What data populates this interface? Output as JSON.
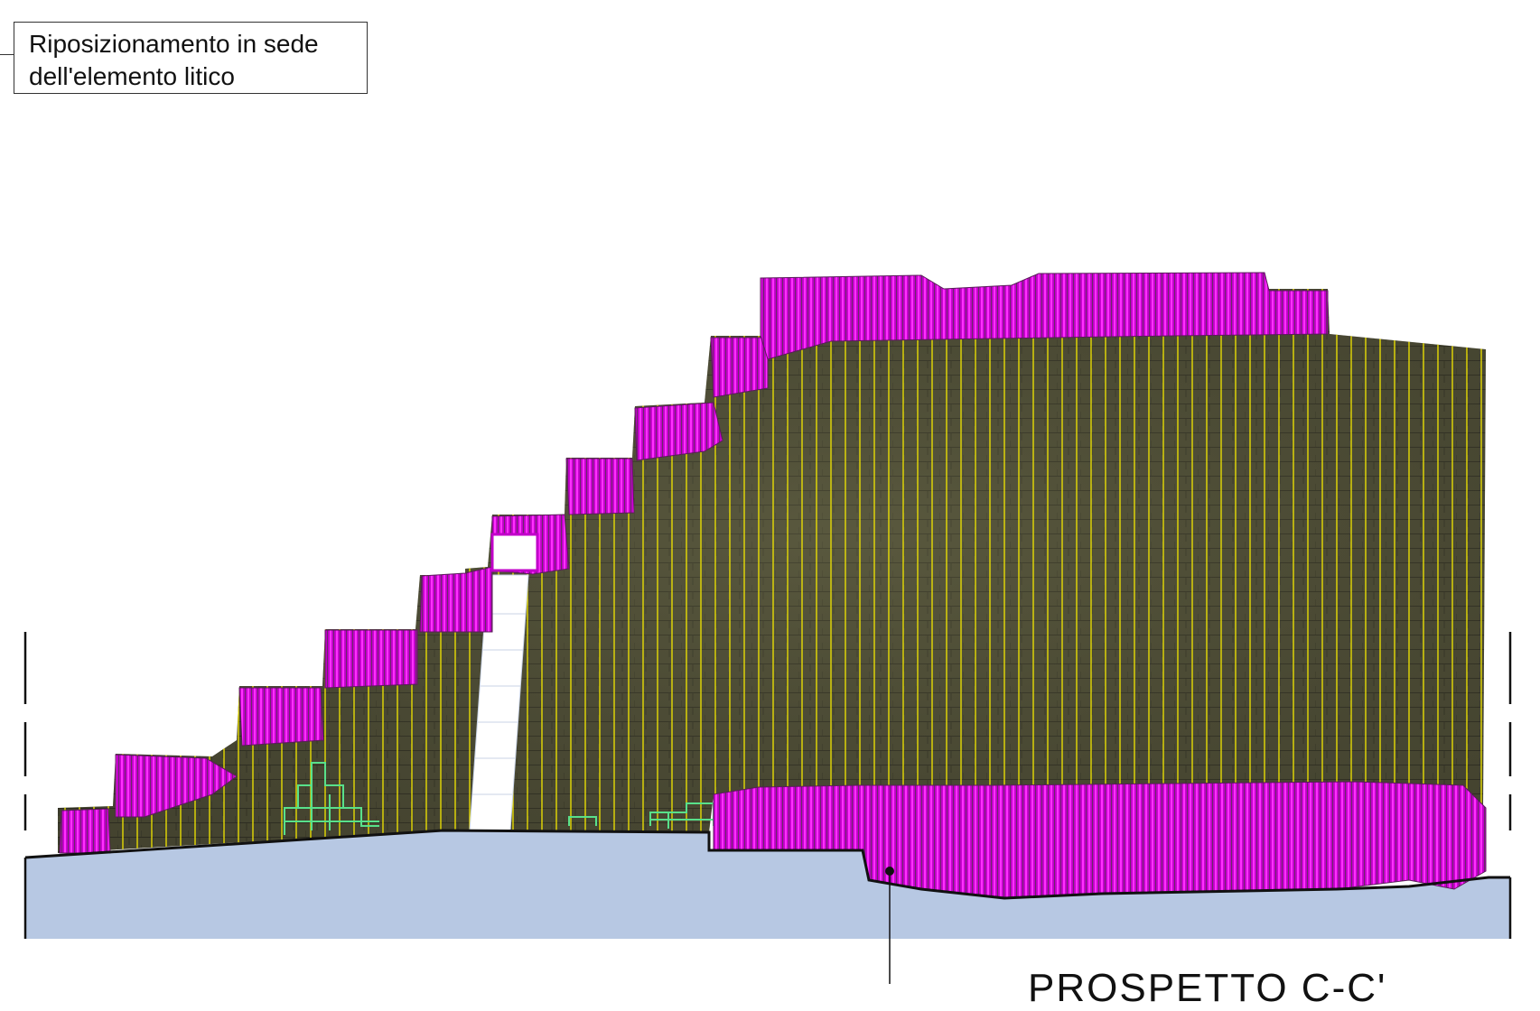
{
  "annotation": {
    "line1": "Riposizionamento in sede",
    "line2": "dell'elemento litico"
  },
  "section_title": "PROSPETTO C-C'",
  "colors": {
    "masonry": "#4d4c35",
    "masonry_dark": "#3a3a2a",
    "stone_hatch": "#e100e8",
    "hatch_yellow": "#f2e600",
    "ground_fill": "#b7c8e3",
    "grid_green": "#58e08a",
    "outline": "#111111"
  },
  "icons": [
    "leader-dot"
  ]
}
